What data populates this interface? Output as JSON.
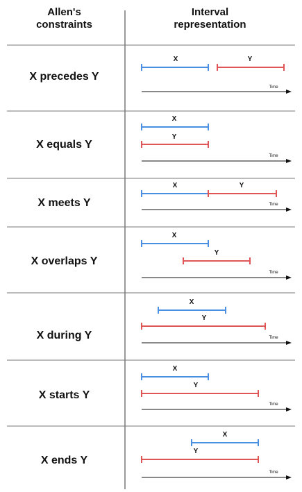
{
  "header": {
    "left_line1": "Allen's",
    "left_line2": "constraints",
    "right_line1": "Interval",
    "right_line2": "representation"
  },
  "colors": {
    "x_interval": "#4a90e2",
    "y_interval": "#e05555",
    "axis": "#111111",
    "divider": "#333333"
  },
  "axis_label": "Time",
  "rows": [
    {
      "label": "X precedes Y",
      "x_label": "X",
      "y_label": "Y"
    },
    {
      "label": "X equals Y",
      "x_label": "X",
      "y_label": "Y"
    },
    {
      "label": "X meets Y",
      "x_label": "X",
      "y_label": "Y"
    },
    {
      "label": "X overlaps Y",
      "x_label": "X",
      "y_label": "Y"
    },
    {
      "label": "X during Y",
      "x_label": "X",
      "y_label": "Y"
    },
    {
      "label": "X starts Y",
      "x_label": "X",
      "y_label": "Y"
    },
    {
      "label": "X ends Y",
      "x_label": "X",
      "y_label": "Y"
    }
  ]
}
